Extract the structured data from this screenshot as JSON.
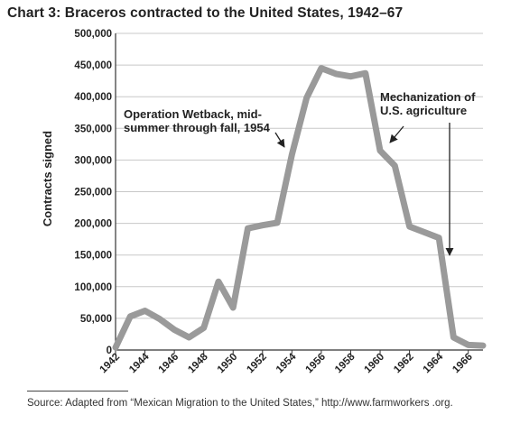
{
  "chart_data": {
    "type": "line",
    "title": "Chart 3: Braceros contracted to the United States, 1942–67",
    "ylabel": "Contracts signed",
    "xlabel": "",
    "ylim": [
      0,
      500000
    ],
    "xlim": [
      1942,
      1967
    ],
    "y_ticks": [
      "500,000",
      "450,000",
      "400,000",
      "350,000",
      "300,000",
      "250,000",
      "200,000",
      "150,000",
      "100,000",
      "50,000",
      "0"
    ],
    "x_ticks": [
      "1942",
      "1944",
      "1946",
      "1948",
      "1950",
      "1952",
      "1954",
      "1956",
      "1958",
      "1960",
      "1962",
      "1964",
      "1966"
    ],
    "grid": "horizontal",
    "line_color": "#9a9a9a",
    "x": [
      1942,
      1943,
      1944,
      1945,
      1946,
      1947,
      1948,
      1949,
      1950,
      1951,
      1952,
      1953,
      1954,
      1955,
      1956,
      1957,
      1958,
      1959,
      1960,
      1961,
      1962,
      1963,
      1964,
      1965,
      1966,
      1967
    ],
    "y": [
      4000,
      53000,
      62000,
      49000,
      32000,
      20000,
      35000,
      108000,
      67000,
      192000,
      197000,
      201000,
      309000,
      398000,
      445000,
      436000,
      432000,
      437000,
      315000,
      291000,
      195000,
      186000,
      177000,
      20000,
      8000,
      7000
    ],
    "annotations": [
      {
        "lines": [
          "Operation Wetback, mid-",
          "summer through fall, 1954"
        ]
      },
      {
        "lines": [
          "Mechanization of",
          "U.S. agriculture"
        ]
      }
    ]
  },
  "source": "Source: Adapted from “Mexican Migration to the United States,” http://www.farmworkers .org."
}
